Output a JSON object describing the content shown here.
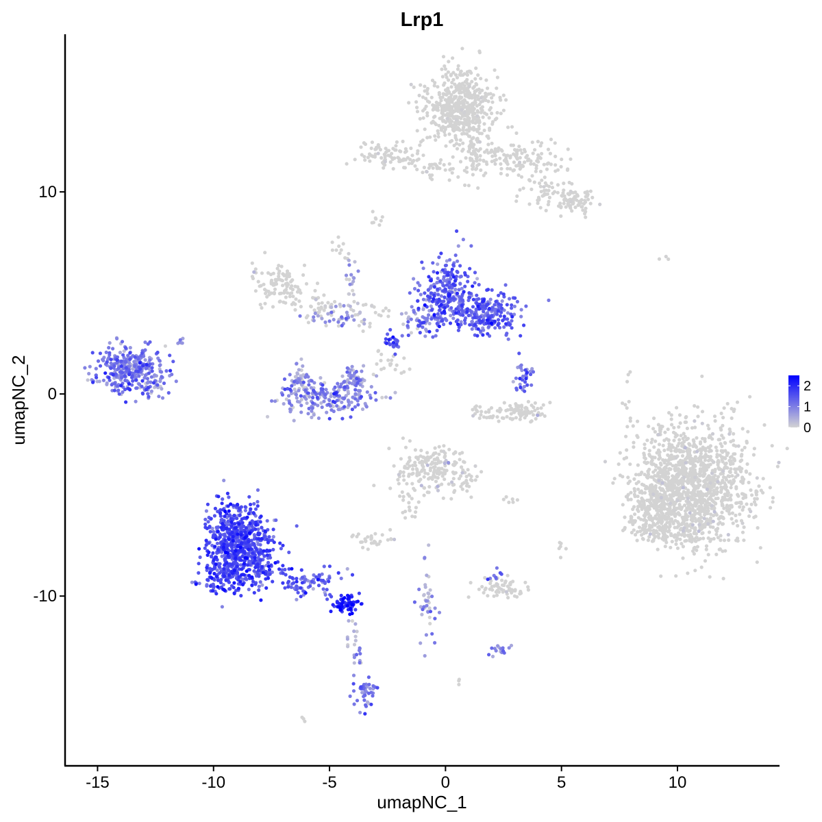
{
  "chart_data": {
    "type": "scatter",
    "title": "Lrp1",
    "xlabel": "umapNC_1",
    "ylabel": "umapNC_2",
    "xlim": [
      -16.4,
      14.4
    ],
    "ylim": [
      -18.4,
      17.8
    ],
    "x_ticks": [
      -15,
      -10,
      -5,
      0,
      5,
      10
    ],
    "x_tick_labels": [
      "-15",
      "-10",
      "-5",
      "0",
      "5",
      "10"
    ],
    "y_ticks": [
      -10,
      0,
      10
    ],
    "y_tick_labels": [
      "-10",
      "0",
      "10"
    ],
    "grid": false,
    "legend": {
      "position": "right",
      "type": "colorbar",
      "range": [
        0,
        2.5
      ],
      "ticks": [
        0,
        1,
        2
      ],
      "tick_labels": [
        "0",
        "1",
        "2"
      ],
      "low_color": "#d3d3d3",
      "high_color": "#0000ff"
    },
    "clusters": [
      {
        "cx": 0.6,
        "cy": 14.2,
        "sx": 0.75,
        "sy": 0.9,
        "n": 520,
        "expr": 0.0,
        "spread": 0.05
      },
      {
        "cx": 2.9,
        "cy": 11.6,
        "sx": 1.1,
        "sy": 0.5,
        "n": 140,
        "expr": 0.0,
        "spread": 0.05
      },
      {
        "cx": 5.6,
        "cy": 9.5,
        "sx": 0.45,
        "sy": 0.35,
        "n": 80,
        "expr": 0.0,
        "spread": 0.05
      },
      {
        "cx": 4.3,
        "cy": 10.0,
        "sx": 0.5,
        "sy": 0.35,
        "n": 40,
        "expr": 0.0,
        "spread": 0.05
      },
      {
        "cx": -2.4,
        "cy": 11.8,
        "sx": 0.7,
        "sy": 0.35,
        "n": 80,
        "expr": 0.0,
        "spread": 0.05
      },
      {
        "cx": -0.7,
        "cy": 11.2,
        "sx": 0.9,
        "sy": 0.25,
        "n": 40,
        "expr": 0.0,
        "spread": 0.05
      },
      {
        "cx": 1.2,
        "cy": 12.0,
        "sx": 0.25,
        "sy": 0.9,
        "n": 50,
        "expr": 0.0,
        "spread": 0.05
      },
      {
        "cx": -3.0,
        "cy": 8.6,
        "sx": 0.15,
        "sy": 0.2,
        "n": 8,
        "expr": 0.1,
        "spread": 0.2
      },
      {
        "cx": -4.6,
        "cy": 7.2,
        "sx": 0.2,
        "sy": 0.25,
        "n": 10,
        "expr": 0.0,
        "spread": 0.05
      },
      {
        "cx": -7.0,
        "cy": 5.3,
        "sx": 0.7,
        "sy": 0.6,
        "n": 110,
        "expr": 0.15,
        "spread": 0.3
      },
      {
        "cx": -5.4,
        "cy": 4.4,
        "sx": 0.5,
        "sy": 0.4,
        "n": 30,
        "expr": 0.0,
        "spread": 0.05
      },
      {
        "cx": -4.6,
        "cy": 3.8,
        "sx": 0.7,
        "sy": 0.4,
        "n": 40,
        "expr": 0.6,
        "spread": 0.4
      },
      {
        "cx": -3.5,
        "cy": 3.9,
        "sx": 0.6,
        "sy": 0.3,
        "n": 25,
        "expr": 0.0,
        "spread": 0.05
      },
      {
        "cx": -4.0,
        "cy": 5.8,
        "sx": 0.2,
        "sy": 0.9,
        "n": 20,
        "expr": 0.4,
        "spread": 0.4
      },
      {
        "cx": 0.0,
        "cy": 5.0,
        "sx": 0.55,
        "sy": 0.8,
        "n": 260,
        "expr": 1.25,
        "spread": 0.45
      },
      {
        "cx": -1.2,
        "cy": 3.6,
        "sx": 0.6,
        "sy": 0.35,
        "n": 50,
        "expr": 0.9,
        "spread": 0.5
      },
      {
        "cx": 1.8,
        "cy": 4.0,
        "sx": 0.7,
        "sy": 0.5,
        "n": 220,
        "expr": 1.35,
        "spread": 0.35
      },
      {
        "cx": -2.3,
        "cy": 2.5,
        "sx": 0.25,
        "sy": 0.25,
        "n": 25,
        "expr": 1.5,
        "spread": 0.3
      },
      {
        "cx": -2.0,
        "cy": 1.5,
        "sx": 0.8,
        "sy": 0.4,
        "n": 20,
        "expr": 0.0,
        "spread": 0.05
      },
      {
        "cx": -13.7,
        "cy": 1.2,
        "sx": 0.65,
        "sy": 0.55,
        "n": 310,
        "expr": 1.05,
        "spread": 0.4
      },
      {
        "cx": -12.5,
        "cy": 0.6,
        "sx": 0.4,
        "sy": 0.6,
        "n": 40,
        "expr": 0.7,
        "spread": 0.4
      },
      {
        "cx": -5.1,
        "cy": -0.2,
        "sx": 1.1,
        "sy": 0.45,
        "n": 200,
        "expr": 0.85,
        "spread": 0.45
      },
      {
        "cx": -6.3,
        "cy": 0.7,
        "sx": 0.3,
        "sy": 0.35,
        "n": 50,
        "expr": 0.6,
        "spread": 0.4
      },
      {
        "cx": -3.9,
        "cy": 0.8,
        "sx": 0.25,
        "sy": 0.35,
        "n": 40,
        "expr": 0.8,
        "spread": 0.4
      },
      {
        "cx": 3.3,
        "cy": 0.8,
        "sx": 0.2,
        "sy": 0.45,
        "n": 35,
        "expr": 1.1,
        "spread": 0.45
      },
      {
        "cx": 2.9,
        "cy": -0.9,
        "sx": 0.8,
        "sy": 0.22,
        "n": 100,
        "expr": 0.15,
        "spread": 0.3
      },
      {
        "cx": -0.6,
        "cy": -3.7,
        "sx": 0.75,
        "sy": 0.55,
        "n": 180,
        "expr": 0.1,
        "spread": 0.3
      },
      {
        "cx": 0.9,
        "cy": -4.4,
        "sx": 0.35,
        "sy": 0.5,
        "n": 30,
        "expr": 0.0,
        "spread": 0.05
      },
      {
        "cx": -1.6,
        "cy": -5.3,
        "sx": 0.25,
        "sy": 0.6,
        "n": 20,
        "expr": 0.1,
        "spread": 0.2
      },
      {
        "cx": 10.6,
        "cy": -4.5,
        "sx": 1.25,
        "sy": 1.5,
        "n": 1300,
        "expr": 0.02,
        "spread": 0.12
      },
      {
        "cx": 9.0,
        "cy": -5.5,
        "sx": 0.5,
        "sy": 0.55,
        "n": 150,
        "expr": 0.0,
        "spread": 0.05
      },
      {
        "cx": 9.8,
        "cy": -6.8,
        "sx": 0.9,
        "sy": 0.3,
        "n": 120,
        "expr": 0.02,
        "spread": 0.1
      },
      {
        "cx": -8.9,
        "cy": -7.3,
        "sx": 0.65,
        "sy": 0.95,
        "n": 620,
        "expr": 1.55,
        "spread": 0.35
      },
      {
        "cx": -9.6,
        "cy": -8.9,
        "sx": 0.5,
        "sy": 0.45,
        "n": 130,
        "expr": 1.55,
        "spread": 0.35
      },
      {
        "cx": -7.9,
        "cy": -8.6,
        "sx": 0.45,
        "sy": 0.55,
        "n": 80,
        "expr": 1.5,
        "spread": 0.35
      },
      {
        "cx": -6.1,
        "cy": -9.4,
        "sx": 0.75,
        "sy": 0.35,
        "n": 80,
        "expr": 1.35,
        "spread": 0.35
      },
      {
        "cx": -4.3,
        "cy": -10.4,
        "sx": 0.3,
        "sy": 0.22,
        "n": 70,
        "expr": 2.0,
        "spread": 0.35
      },
      {
        "cx": -3.5,
        "cy": -14.8,
        "sx": 0.3,
        "sy": 0.45,
        "n": 40,
        "expr": 1.1,
        "spread": 0.4
      },
      {
        "cx": -3.8,
        "cy": -13.3,
        "sx": 0.15,
        "sy": 0.4,
        "n": 12,
        "expr": 0.9,
        "spread": 0.4
      },
      {
        "cx": -4.0,
        "cy": -11.9,
        "sx": 0.15,
        "sy": 0.4,
        "n": 12,
        "expr": 0.3,
        "spread": 0.3
      },
      {
        "cx": -3.2,
        "cy": -7.2,
        "sx": 0.4,
        "sy": 0.22,
        "n": 30,
        "expr": 0.1,
        "spread": 0.3
      },
      {
        "cx": 2.4,
        "cy": -9.6,
        "sx": 0.6,
        "sy": 0.22,
        "n": 60,
        "expr": 0.05,
        "spread": 0.2
      },
      {
        "cx": 2.1,
        "cy": -9.0,
        "sx": 0.25,
        "sy": 0.2,
        "n": 8,
        "expr": 1.1,
        "spread": 0.4
      },
      {
        "cx": -0.8,
        "cy": -10.4,
        "sx": 0.25,
        "sy": 1.0,
        "n": 40,
        "expr": 0.6,
        "spread": 0.4
      },
      {
        "cx": 2.4,
        "cy": -12.7,
        "sx": 0.3,
        "sy": 0.15,
        "n": 15,
        "expr": 0.8,
        "spread": 0.3
      },
      {
        "cx": 5.1,
        "cy": -7.6,
        "sx": 0.15,
        "sy": 0.3,
        "n": 6,
        "expr": 0.0,
        "spread": 0.05
      },
      {
        "cx": 2.9,
        "cy": -5.2,
        "sx": 0.3,
        "sy": 0.1,
        "n": 6,
        "expr": 0.0,
        "spread": 0.05
      },
      {
        "cx": 7.9,
        "cy": -0.5,
        "sx": 0.15,
        "sy": 0.9,
        "n": 12,
        "expr": 0.0,
        "spread": 0.05
      },
      {
        "cx": 9.5,
        "cy": 6.7,
        "sx": 0.15,
        "sy": 0.05,
        "n": 3,
        "expr": 0.0,
        "spread": 0.05
      },
      {
        "cx": -6.1,
        "cy": -16.1,
        "sx": 0.1,
        "sy": 0.1,
        "n": 3,
        "expr": 0.0,
        "spread": 0.05
      },
      {
        "cx": 0.6,
        "cy": -14.3,
        "sx": 0.1,
        "sy": 0.1,
        "n": 3,
        "expr": 0.0,
        "spread": 0.05
      },
      {
        "cx": -11.4,
        "cy": 2.6,
        "sx": 0.15,
        "sy": 0.15,
        "n": 6,
        "expr": 0.9,
        "spread": 0.3
      }
    ]
  }
}
